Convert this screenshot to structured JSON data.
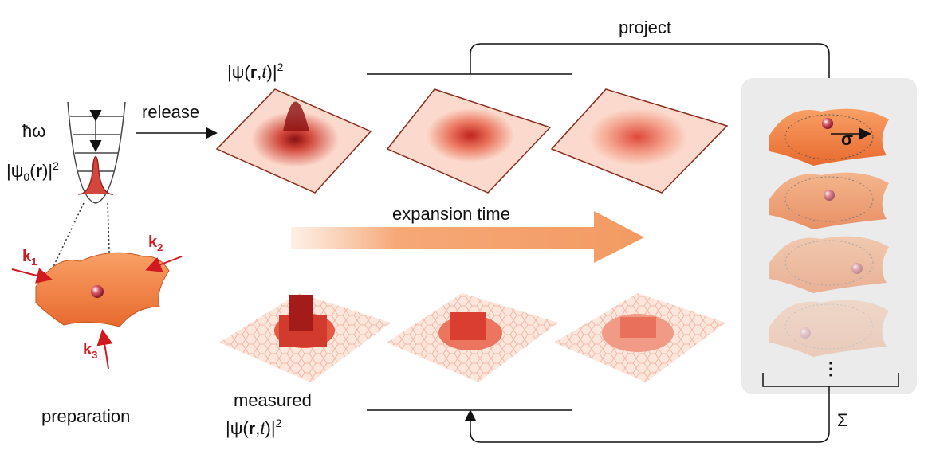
{
  "labels": {
    "project": "project",
    "release": "release",
    "hbar_omega": "ħω",
    "expansion": "expansion time",
    "preparation": "preparation",
    "measured": "measured",
    "sigma": "σ",
    "sum": "Σ",
    "dots": "⋮"
  },
  "top_wavefunction": [
    "|ψ(",
    "r",
    ",",
    "t",
    ")|",
    "2"
  ],
  "bottom_wavefunction": [
    "|ψ(",
    "r",
    ",",
    "t",
    ")|",
    "2"
  ],
  "ground_state": [
    "|ψ",
    "0",
    "(",
    "r",
    ")|",
    "2"
  ],
  "k_vectors": [
    {
      "k": "k",
      "sub": "1"
    },
    {
      "k": "k",
      "sub": "2"
    },
    {
      "k": "k",
      "sub": "3"
    }
  ]
}
